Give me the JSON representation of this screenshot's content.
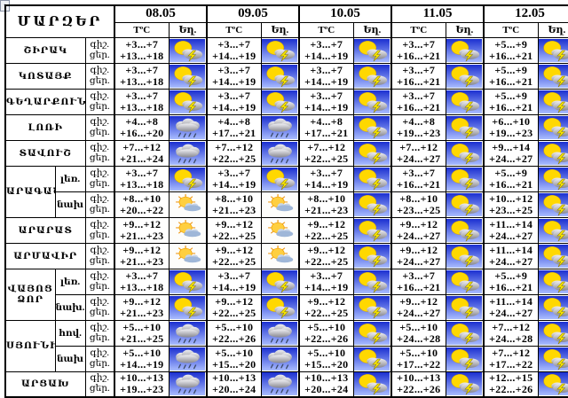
{
  "header": {
    "regions_label": "ՄԱՐԶԵՐ",
    "dates": [
      "08.05",
      "09.05",
      "10.05",
      "11.05",
      "12.05"
    ],
    "temp_label": "TºC",
    "weather_label": "Եղ."
  },
  "labels": {
    "night": "գիշ.",
    "day": "ցեր."
  },
  "icon_names": {
    "thunder": "sun-cloud-lightning-icon",
    "rain": "rain-cloud-icon",
    "partly": "sun-small-cloud-icon"
  },
  "regions": [
    {
      "name": "ՇԻՐԱԿ",
      "zones": [
        {
          "label": "",
          "days": [
            {
              "night": "+3...+7",
              "day": "+13...+18",
              "icon": "thunder"
            },
            {
              "night": "+3...+7",
              "day": "+14...+19",
              "icon": "thunder"
            },
            {
              "night": "+3...+7",
              "day": "+14...+19",
              "icon": "thunder"
            },
            {
              "night": "+3...+7",
              "day": "+16...+21",
              "icon": "thunder"
            },
            {
              "night": "+5...+9",
              "day": "+16...+21",
              "icon": "thunder"
            }
          ]
        }
      ]
    },
    {
      "name": "ԿՈՏԱՅՔ",
      "zones": [
        {
          "label": "",
          "days": [
            {
              "night": "+3...+7",
              "day": "+13...+18",
              "icon": "thunder"
            },
            {
              "night": "+3...+7",
              "day": "+14...+19",
              "icon": "thunder"
            },
            {
              "night": "+3...+7",
              "day": "+14...+19",
              "icon": "thunder"
            },
            {
              "night": "+3...+7",
              "day": "+16...+21",
              "icon": "thunder"
            },
            {
              "night": "+5...+9",
              "day": "+16...+21",
              "icon": "thunder"
            }
          ]
        }
      ]
    },
    {
      "name": "ԳԵՂԱՐՔՈՒՆԻՔ",
      "zones": [
        {
          "label": "",
          "days": [
            {
              "night": "+3...+7",
              "day": "+13...+18",
              "icon": "thunder"
            },
            {
              "night": "+3...+7",
              "day": "+14...+19",
              "icon": "thunder"
            },
            {
              "night": "+3...+7",
              "day": "+14...+19",
              "icon": "thunder"
            },
            {
              "night": "+3...+7",
              "day": "+16...+21",
              "icon": "thunder"
            },
            {
              "night": "+5...+9",
              "day": "+16...+21",
              "icon": "thunder"
            }
          ]
        }
      ]
    },
    {
      "name": "ԼՈՌԻ",
      "zones": [
        {
          "label": "",
          "days": [
            {
              "night": "+4...+8",
              "day": "+16...+20",
              "icon": "rain"
            },
            {
              "night": "+4...+8",
              "day": "+17...+21",
              "icon": "rain"
            },
            {
              "night": "+4...+8",
              "day": "+17...+21",
              "icon": "thunder"
            },
            {
              "night": "+4...+8",
              "day": "+19...+23",
              "icon": "thunder"
            },
            {
              "night": "+6...+10",
              "day": "+19...+23",
              "icon": "thunder"
            }
          ]
        }
      ]
    },
    {
      "name": "ՏԱՎՈՒՇ",
      "zones": [
        {
          "label": "",
          "days": [
            {
              "night": "+7...+12",
              "day": "+21...+24",
              "icon": "rain"
            },
            {
              "night": "+7...+12",
              "day": "+22...+25",
              "icon": "rain"
            },
            {
              "night": "+7...+12",
              "day": "+22...+25",
              "icon": "thunder"
            },
            {
              "night": "+7...+12",
              "day": "+24...+27",
              "icon": "thunder"
            },
            {
              "night": "+9...+14",
              "day": "+24...+27",
              "icon": "thunder"
            }
          ]
        }
      ]
    },
    {
      "name": "ԱՐԱԳԱԾՈՏՆ",
      "zones": [
        {
          "label": "լեռ.",
          "days": [
            {
              "night": "+3...+7",
              "day": "+13...+18",
              "icon": "thunder"
            },
            {
              "night": "+3...+7",
              "day": "+14...+19",
              "icon": "thunder"
            },
            {
              "night": "+3...+7",
              "day": "+14...+19",
              "icon": "thunder"
            },
            {
              "night": "+3...+7",
              "day": "+16...+21",
              "icon": "thunder"
            },
            {
              "night": "+5...+9",
              "day": "+16...+21",
              "icon": "thunder"
            }
          ]
        },
        {
          "label": "նախ",
          "days": [
            {
              "night": "+8...+10",
              "day": "+20...+22",
              "icon": "partly"
            },
            {
              "night": "+8...+10",
              "day": "+21...+23",
              "icon": "partly"
            },
            {
              "night": "+8...+10",
              "day": "+21...+23",
              "icon": "thunder"
            },
            {
              "night": "+8...+10",
              "day": "+23...+25",
              "icon": "thunder"
            },
            {
              "night": "+10...+12",
              "day": "+23...+25",
              "icon": "thunder"
            }
          ]
        }
      ]
    },
    {
      "name": "ԱՐԱՐԱՏ",
      "zones": [
        {
          "label": "",
          "days": [
            {
              "night": "+9...+12",
              "day": "+21...+23",
              "icon": "partly"
            },
            {
              "night": "+9...+12",
              "day": "+22...+25",
              "icon": "partly"
            },
            {
              "night": "+9...+12",
              "day": "+22...+25",
              "icon": "thunder"
            },
            {
              "night": "+9...+12",
              "day": "+24...+27",
              "icon": "thunder"
            },
            {
              "night": "+11...+14",
              "day": "+24...+27",
              "icon": "thunder"
            }
          ]
        }
      ]
    },
    {
      "name": "ԱՐՄԱՎԻՐ",
      "zones": [
        {
          "label": "",
          "days": [
            {
              "night": "+9...+12",
              "day": "+21...+23",
              "icon": "partly"
            },
            {
              "night": "+9...+12",
              "day": "+22...+25",
              "icon": "partly"
            },
            {
              "night": "+9...+12",
              "day": "+22...+25",
              "icon": "thunder"
            },
            {
              "night": "+9...+12",
              "day": "+24...+27",
              "icon": "thunder"
            },
            {
              "night": "+11...+14",
              "day": "+24...+27",
              "icon": "thunder"
            }
          ]
        }
      ]
    },
    {
      "name": "ՎԱՅՈՑ ՁՈՐ",
      "zones": [
        {
          "label": "լեռ.",
          "days": [
            {
              "night": "+3...+7",
              "day": "+13...+18",
              "icon": "thunder"
            },
            {
              "night": "+3...+7",
              "day": "+14...+19",
              "icon": "thunder"
            },
            {
              "night": "+3...+7",
              "day": "+14...+19",
              "icon": "thunder"
            },
            {
              "night": "+3...+7",
              "day": "+16...+21",
              "icon": "thunder"
            },
            {
              "night": "+5...+9",
              "day": "+16...+21",
              "icon": "thunder"
            }
          ]
        },
        {
          "label": "նախ.",
          "days": [
            {
              "night": "+9...+12",
              "day": "+21...+23",
              "icon": "thunder"
            },
            {
              "night": "+9...+12",
              "day": "+22...+25",
              "icon": "thunder"
            },
            {
              "night": "+9...+12",
              "day": "+22...+25",
              "icon": "thunder"
            },
            {
              "night": "+9...+12",
              "day": "+24...+27",
              "icon": "thunder"
            },
            {
              "night": "+11...+14",
              "day": "+24...+27",
              "icon": "thunder"
            }
          ]
        }
      ]
    },
    {
      "name": "ՍՅՈՒՆԻՔ",
      "zones": [
        {
          "label": "հով.",
          "days": [
            {
              "night": "+5...+10",
              "day": "+21...+25",
              "icon": "rain"
            },
            {
              "night": "+5...+10",
              "day": "+22...+26",
              "icon": "rain"
            },
            {
              "night": "+5...+10",
              "day": "+22...+26",
              "icon": "thunder"
            },
            {
              "night": "+5...+10",
              "day": "+24...+28",
              "icon": "thunder"
            },
            {
              "night": "+7...+12",
              "day": "+24...+28",
              "icon": "thunder"
            }
          ]
        },
        {
          "label": "նախ",
          "days": [
            {
              "night": "+5...+10",
              "day": "+14...+19",
              "icon": "rain"
            },
            {
              "night": "+5...+10",
              "day": "+15...+20",
              "icon": "rain"
            },
            {
              "night": "+5...+10",
              "day": "+15...+20",
              "icon": "thunder"
            },
            {
              "night": "+5...+10",
              "day": "+17...+22",
              "icon": "thunder"
            },
            {
              "night": "+7...+12",
              "day": "+17...+22",
              "icon": "thunder"
            }
          ]
        }
      ]
    },
    {
      "name": "ԱՐՑԱԽ",
      "zones": [
        {
          "label": "",
          "days": [
            {
              "night": "+10...+13",
              "day": "+19...+23",
              "icon": "rain"
            },
            {
              "night": "+10...+13",
              "day": "+20...+24",
              "icon": "rain"
            },
            {
              "night": "+10...+13",
              "day": "+20...+24",
              "icon": "thunder"
            },
            {
              "night": "+10...+13",
              "day": "+22...+26",
              "icon": "thunder"
            },
            {
              "night": "+12...+15",
              "day": "+22...+26",
              "icon": "thunder"
            }
          ]
        }
      ]
    }
  ]
}
